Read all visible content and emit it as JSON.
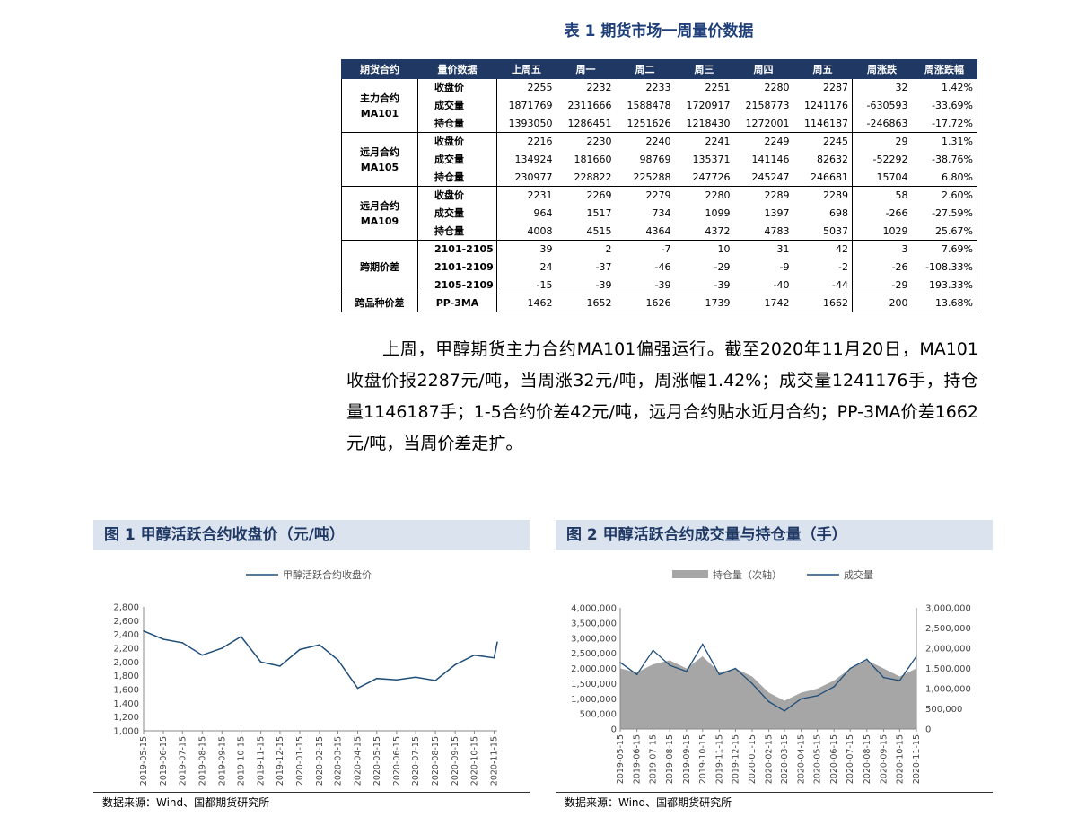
{
  "table": {
    "title": "表 1  期货市场一周量价数据",
    "headers": [
      "期货合约",
      "量价数据",
      "上周五",
      "周一",
      "周二",
      "周三",
      "周四",
      "周五",
      "周涨跌",
      "周涨跌幅"
    ],
    "groups": [
      {
        "name": "主力合约\nMA101",
        "rows": [
          {
            "label": "收盘价",
            "values": [
              "2255",
              "2232",
              "2233",
              "2251",
              "2280",
              "2287",
              "32",
              "1.42%"
            ]
          },
          {
            "label": "成交量",
            "values": [
              "1871769",
              "2311666",
              "1588478",
              "1720917",
              "2158773",
              "1241176",
              "-630593",
              "-33.69%"
            ]
          },
          {
            "label": "持仓量",
            "values": [
              "1393050",
              "1286451",
              "1251626",
              "1218430",
              "1272001",
              "1146187",
              "-246863",
              "-17.72%"
            ]
          }
        ]
      },
      {
        "name": "远月合约\nMA105",
        "rows": [
          {
            "label": "收盘价",
            "values": [
              "2216",
              "2230",
              "2240",
              "2241",
              "2249",
              "2245",
              "29",
              "1.31%"
            ]
          },
          {
            "label": "成交量",
            "values": [
              "134924",
              "181660",
              "98769",
              "135371",
              "141146",
              "82632",
              "-52292",
              "-38.76%"
            ]
          },
          {
            "label": "持仓量",
            "values": [
              "230977",
              "228822",
              "225288",
              "247726",
              "245247",
              "246681",
              "15704",
              "6.80%"
            ]
          }
        ]
      },
      {
        "name": "远月合约\nMA109",
        "rows": [
          {
            "label": "收盘价",
            "values": [
              "2231",
              "2269",
              "2279",
              "2280",
              "2289",
              "2289",
              "58",
              "2.60%"
            ]
          },
          {
            "label": "成交量",
            "values": [
              "964",
              "1517",
              "734",
              "1099",
              "1397",
              "698",
              "-266",
              "-27.59%"
            ]
          },
          {
            "label": "持仓量",
            "values": [
              "4008",
              "4515",
              "4364",
              "4372",
              "4783",
              "5037",
              "1029",
              "25.67%"
            ]
          }
        ]
      },
      {
        "name": "跨期价差",
        "rows": [
          {
            "label": "2101-2105",
            "values": [
              "39",
              "2",
              "-7",
              "10",
              "31",
              "42",
              "3",
              "7.69%"
            ]
          },
          {
            "label": "2101-2109",
            "values": [
              "24",
              "-37",
              "-46",
              "-29",
              "-9",
              "-2",
              "-26",
              "-108.33%"
            ]
          },
          {
            "label": "2105-2109",
            "values": [
              "-15",
              "-39",
              "-39",
              "-39",
              "-40",
              "-44",
              "-29",
              "193.33%"
            ]
          }
        ]
      },
      {
        "name": "跨品种价差",
        "rows": [
          {
            "label": "PP-3MA",
            "values": [
              "1462",
              "1652",
              "1626",
              "1739",
              "1742",
              "1662",
              "200",
              "13.68%"
            ]
          }
        ]
      }
    ]
  },
  "paragraph": "上周，甲醇期货主力合约MA101偏强运行。截至2020年11月20日，MA101收盘价报2287元/吨，当周涨32元/吨，周涨幅1.42%；成交量1241176手，持仓量1146187手；1-5合约价差42元/吨，远月合约贴水近月合约；PP-3MA价差1662元/吨，当周价差走扩。",
  "figure1": {
    "title": "图 1  甲醇活跃合约收盘价（元/吨）",
    "source": "数据来源：Wind、国都期货研究所"
  },
  "figure2": {
    "title": "图 2  甲醇活跃合约成交量与持仓量（手）",
    "source": "数据来源：Wind、国都期货研究所"
  },
  "colors": {
    "header_bg": "#1f3864",
    "title_color": "#1f3f7a",
    "fig_title_bg": "#dbe3ef",
    "line": "#1f4e79",
    "area": "#a6a6a6"
  },
  "chart_data": [
    {
      "type": "line",
      "title": "",
      "series": [
        {
          "name": "甲醇活跃合约收盘价",
          "x": [
            "2019-05-15",
            "2019-06-15",
            "2019-07-15",
            "2019-08-15",
            "2019-09-15",
            "2019-10-15",
            "2019-11-15",
            "2019-12-15",
            "2020-01-15",
            "2020-02-15",
            "2020-03-15",
            "2020-04-15",
            "2020-05-15",
            "2020-06-15",
            "2020-07-15",
            "2020-08-15",
            "2020-09-15",
            "2020-10-15",
            "2020-11-15",
            "2020-11-20"
          ],
          "values": [
            2450,
            2330,
            2280,
            2100,
            2200,
            2370,
            2000,
            1940,
            2180,
            2250,
            2030,
            1620,
            1760,
            1740,
            1780,
            1730,
            1960,
            2100,
            2060,
            2287
          ]
        }
      ],
      "x_tick_labels": [
        "2019-05-15",
        "2019-06-15",
        "2019-07-15",
        "2019-08-15",
        "2019-09-15",
        "2019-10-15",
        "2019-11-15",
        "2019-12-15",
        "2020-01-15",
        "2020-02-15",
        "2020-03-15",
        "2020-04-15",
        "2020-05-15",
        "2020-06-15",
        "2020-07-15",
        "2020-08-15",
        "2020-09-15",
        "2020-10-15",
        "2020-11-15"
      ],
      "y_ticks": [
        "1,000",
        "1,200",
        "1,400",
        "1,600",
        "1,800",
        "2,000",
        "2,200",
        "2,400",
        "2,600",
        "2,800"
      ],
      "ylim": [
        1000,
        2800
      ],
      "legend_position": "top-center",
      "grid": false
    },
    {
      "type": "area",
      "title": "",
      "series": [
        {
          "name": "持仓量（次轴）",
          "axis": "right",
          "kind": "area",
          "x": [
            "2019-05-15",
            "2019-06-15",
            "2019-07-15",
            "2019-08-15",
            "2019-09-15",
            "2019-10-15",
            "2019-11-15",
            "2019-12-15",
            "2020-01-15",
            "2020-02-15",
            "2020-03-15",
            "2020-04-15",
            "2020-05-15",
            "2020-06-15",
            "2020-07-15",
            "2020-08-15",
            "2020-09-15",
            "2020-10-15",
            "2020-11-15"
          ],
          "values": [
            1500000,
            1400000,
            1600000,
            1700000,
            1500000,
            1800000,
            1400000,
            1500000,
            1300000,
            900000,
            700000,
            900000,
            1000000,
            1200000,
            1500000,
            1700000,
            1500000,
            1300000,
            1500000
          ]
        },
        {
          "name": "成交量",
          "axis": "left",
          "kind": "line",
          "x": [
            "2019-05-15",
            "2019-06-15",
            "2019-07-15",
            "2019-08-15",
            "2019-09-15",
            "2019-10-15",
            "2019-11-15",
            "2019-12-15",
            "2020-01-15",
            "2020-02-15",
            "2020-03-15",
            "2020-04-15",
            "2020-05-15",
            "2020-06-15",
            "2020-07-15",
            "2020-08-15",
            "2020-09-15",
            "2020-10-15",
            "2020-11-15"
          ],
          "values": [
            2200000,
            1800000,
            2600000,
            2100000,
            1900000,
            2800000,
            1800000,
            2000000,
            1500000,
            900000,
            600000,
            1000000,
            1100000,
            1400000,
            2000000,
            2300000,
            1700000,
            1600000,
            2400000
          ]
        }
      ],
      "x_tick_labels": [
        "2019-05-15",
        "2019-06-15",
        "2019-07-15",
        "2019-08-15",
        "2019-09-15",
        "2019-10-15",
        "2019-11-15",
        "2019-12-15",
        "2020-01-15",
        "2020-02-15",
        "2020-03-15",
        "2020-04-15",
        "2020-05-15",
        "2020-06-15",
        "2020-07-15",
        "2020-08-15",
        "2020-09-15",
        "2020-10-15",
        "2020-11-15"
      ],
      "y_ticks_left": [
        "0",
        "500,000",
        "1,000,000",
        "1,500,000",
        "2,000,000",
        "2,500,000",
        "3,000,000",
        "3,500,000",
        "4,000,000"
      ],
      "y_ticks_right": [
        "0",
        "500,000",
        "1,000,000",
        "1,500,000",
        "2,000,000",
        "2,500,000",
        "3,000,000"
      ],
      "ylim_left": [
        0,
        4000000
      ],
      "ylim_right": [
        0,
        3000000
      ],
      "legend_position": "top-center",
      "grid": false
    }
  ]
}
